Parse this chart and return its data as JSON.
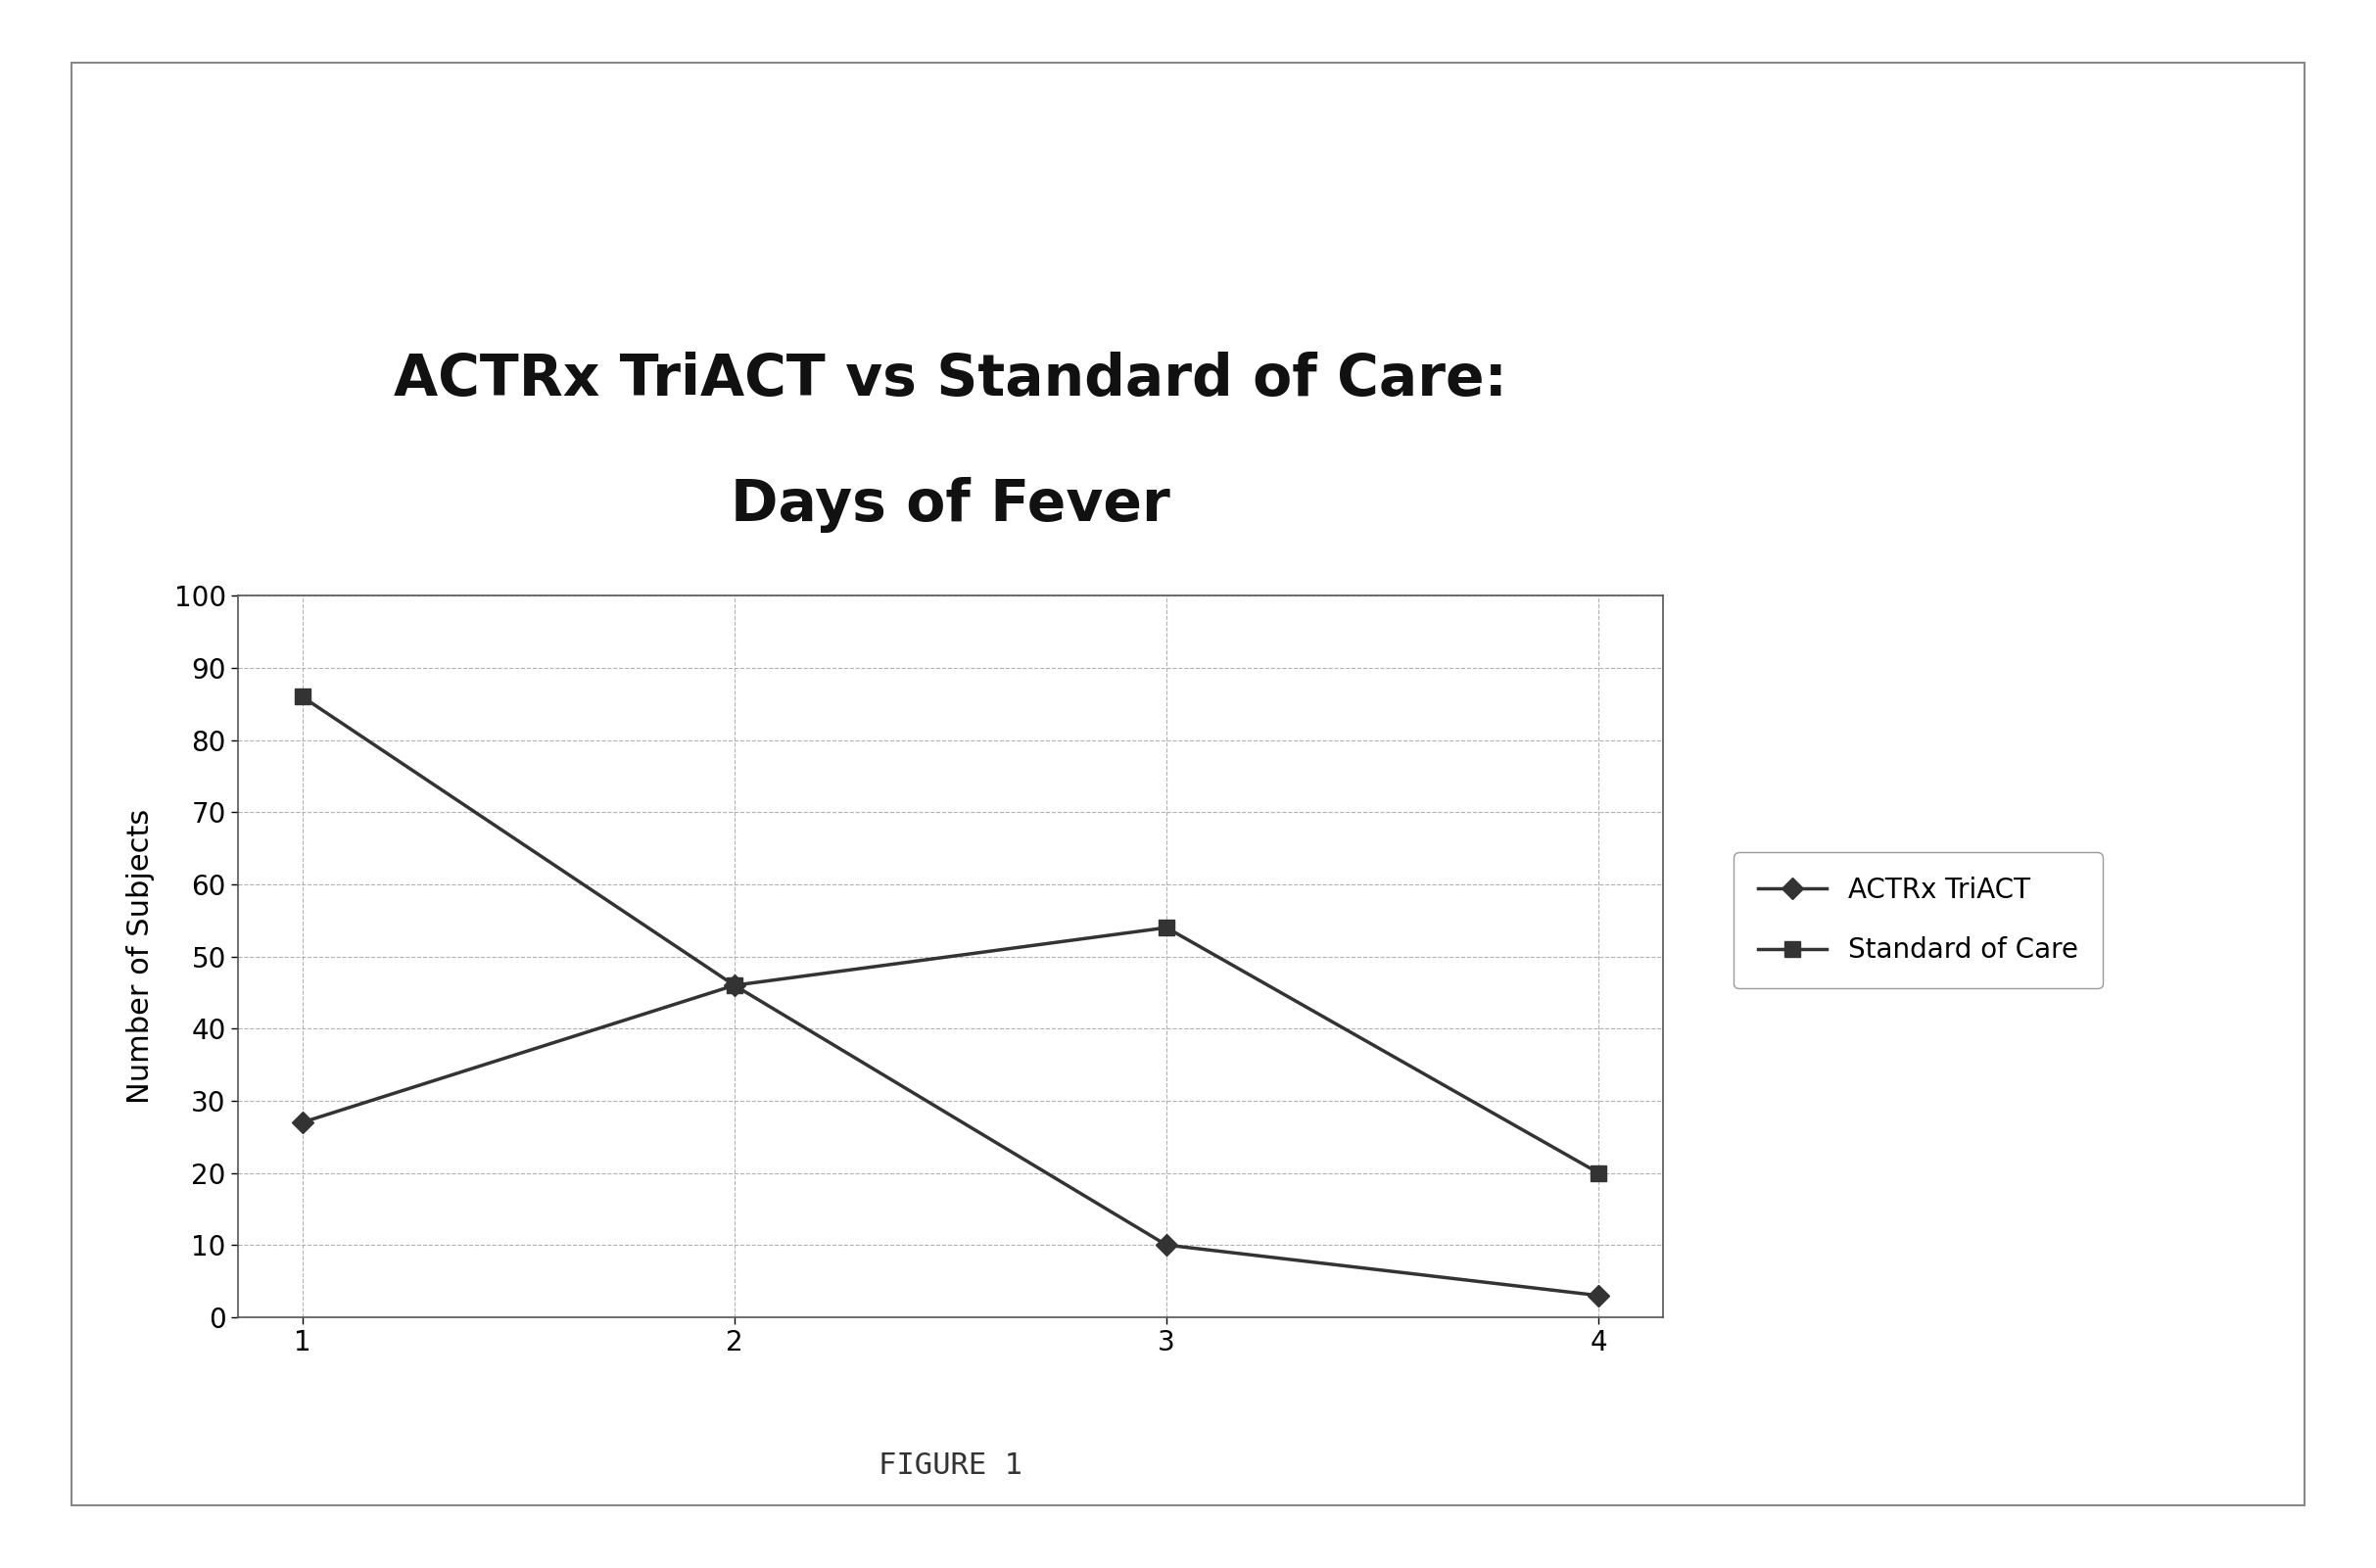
{
  "title_line1": "ACTRx TriACT vs Standard of Care:",
  "title_line2": "Days of Fever",
  "ylabel": "Number of Subjects",
  "figure_caption": "FIGURE 1",
  "x_values": [
    1,
    2,
    3,
    4
  ],
  "actrx_values": [
    27,
    46,
    10,
    3
  ],
  "soc_values": [
    86,
    46,
    54,
    20
  ],
  "ylim": [
    0,
    100
  ],
  "yticks": [
    0,
    10,
    20,
    30,
    40,
    50,
    60,
    70,
    80,
    90,
    100
  ],
  "xticks": [
    1,
    2,
    3,
    4
  ],
  "legend_labels": [
    "ACTRx TriACT",
    "Standard of Care"
  ],
  "line_color": "#333333",
  "marker_actrx": "D",
  "marker_soc": "s",
  "background_color": "#ffffff",
  "grid_color": "#aaaaaa",
  "title_fontsize": 42,
  "axis_label_fontsize": 22,
  "tick_fontsize": 20,
  "legend_fontsize": 20,
  "caption_fontsize": 22,
  "outer_border_color": "#888888"
}
